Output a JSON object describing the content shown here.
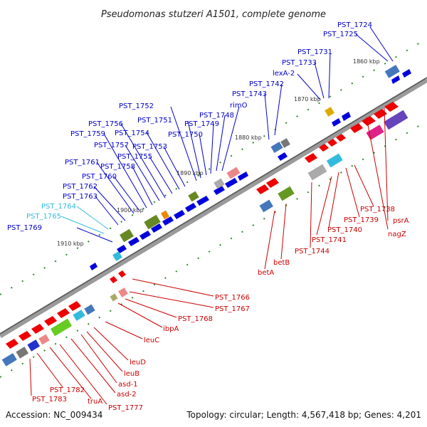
{
  "title": "Pseudomonas stutzeri A1501, complete genome",
  "footer": {
    "accession": "Accession: NC_009434",
    "topology": "Topology: circular; Length: 4,567,418 bp; Genes: 4,201"
  },
  "ticks": [
    "1860 kbp",
    "1870 kbp",
    "1880 kbp",
    "1890 kbp",
    "1900 kbp",
    "1910 kbp"
  ],
  "upper_labels": [
    "PST_1724",
    "PST_1725",
    "PST_1731",
    "PST_1733",
    "lexA-2",
    "PST_1742",
    "PST_1743",
    "rimO",
    "PST_1748",
    "PST_1749",
    "PST_1750",
    "PST_1751",
    "PST_1752",
    "PST_1753",
    "PST_1754",
    "PST_1755",
    "PST_1756",
    "PST_1757",
    "PST_1758",
    "PST_1759",
    "PST_1760",
    "PST_1761",
    "PST_1762",
    "PST_1763",
    "PST_1764",
    "PST_1765",
    "PST_1769"
  ],
  "lower_labels": [
    "psrA",
    "nagZ",
    "PST_1738",
    "PST_1739",
    "PST_1740",
    "PST_1741",
    "PST_1744",
    "betB",
    "betA",
    "PST_1766",
    "PST_1767",
    "PST_1768",
    "ibpA",
    "leuC",
    "leuD",
    "leuB",
    "asd-1",
    "asd-2",
    "PST_1777",
    "truA",
    "PST_1782",
    "PST_1783"
  ],
  "colors": {
    "forward_gene": "#0000dd",
    "reverse_gene": "#ee0000",
    "blue_label": "#0000cc",
    "cyan_label": "#33bbdd",
    "red_label": "#cc0000"
  }
}
